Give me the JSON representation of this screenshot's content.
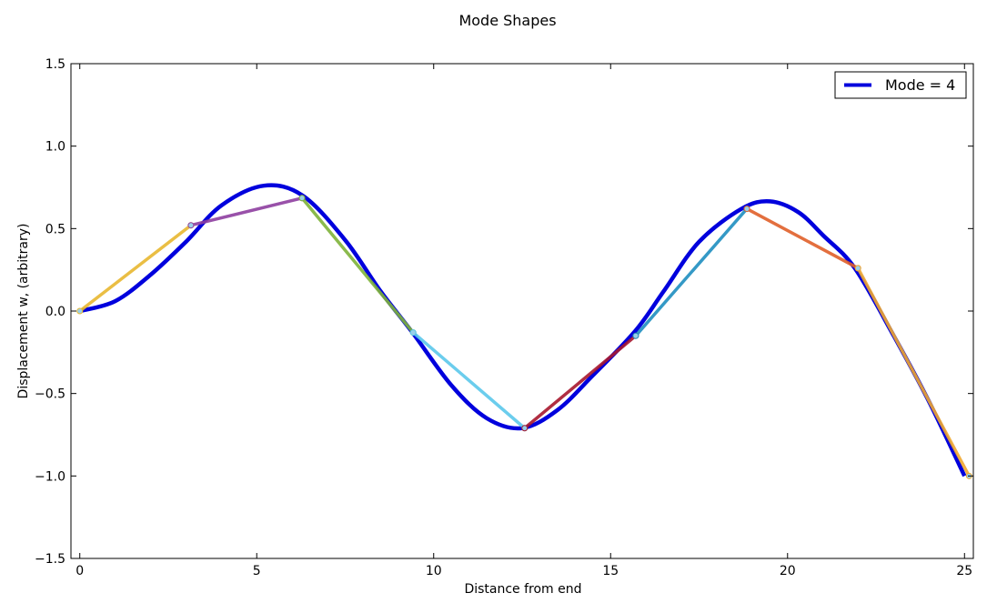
{
  "chart_data": {
    "type": "line",
    "title": "Mode Shapes",
    "xlabel": "Distance from end",
    "ylabel": "Displacement w, (arbitrary)",
    "xlim": [
      -0.25,
      25.25
    ],
    "ylim": [
      -1.5,
      1.5
    ],
    "xticks": [
      0,
      5,
      10,
      15,
      20,
      25
    ],
    "yticks": [
      1.5,
      1.0,
      0.5,
      0.0,
      -0.5,
      -1.0,
      -1.5
    ],
    "xtick_labels": [
      "0",
      "5",
      "10",
      "15",
      "20",
      "25"
    ],
    "ytick_labels": [
      "1.5",
      "1.0",
      "0.5",
      "0.0",
      "−0.5",
      "−1.0",
      "−1.5"
    ],
    "grid": false,
    "legend": {
      "placement": "top-right",
      "entries": [
        "Mode = 4"
      ]
    },
    "series": [
      {
        "name": "Mode = 4",
        "color": "#0000dd",
        "x": [
          0,
          1,
          2,
          3,
          4,
          5.2,
          6.3,
          7.5,
          8.5,
          9.4,
          10.5,
          11.5,
          12.5,
          13.5,
          14.5,
          15.7,
          16.5,
          17.5,
          18.7,
          19.5,
          20.3,
          21,
          21.9,
          23,
          24,
          25
        ],
        "y": [
          0,
          0.06,
          0.22,
          0.42,
          0.64,
          0.76,
          0.7,
          0.43,
          0.12,
          -0.13,
          -0.45,
          -0.65,
          -0.71,
          -0.6,
          -0.39,
          -0.12,
          0.12,
          0.42,
          0.62,
          0.665,
          0.6,
          0.46,
          0.26,
          -0.15,
          -0.55,
          -1.0
        ]
      }
    ],
    "segments": [
      {
        "x": [
          0,
          3.14
        ],
        "y": [
          0,
          0.52
        ],
        "color": "#e8b830"
      },
      {
        "x": [
          3.14,
          6.28
        ],
        "y": [
          0.52,
          0.685
        ],
        "color": "#8e3fa0"
      },
      {
        "x": [
          6.28,
          9.42
        ],
        "y": [
          0.685,
          -0.13
        ],
        "color": "#7fb33a"
      },
      {
        "x": [
          9.42,
          12.57
        ],
        "y": [
          -0.13,
          -0.71
        ],
        "color": "#5bc8ec"
      },
      {
        "x": [
          12.57,
          15.71
        ],
        "y": [
          -0.71,
          -0.15
        ],
        "color": "#a8182e"
      },
      {
        "x": [
          15.71,
          18.85
        ],
        "y": [
          -0.15,
          0.62
        ],
        "color": "#1f8fc0"
      },
      {
        "x": [
          18.85,
          21.99
        ],
        "y": [
          0.62,
          0.26
        ],
        "color": "#e0602a"
      },
      {
        "x": [
          21.99,
          25.13
        ],
        "y": [
          0.26,
          -1.0
        ],
        "color": "#f0a830"
      }
    ]
  }
}
